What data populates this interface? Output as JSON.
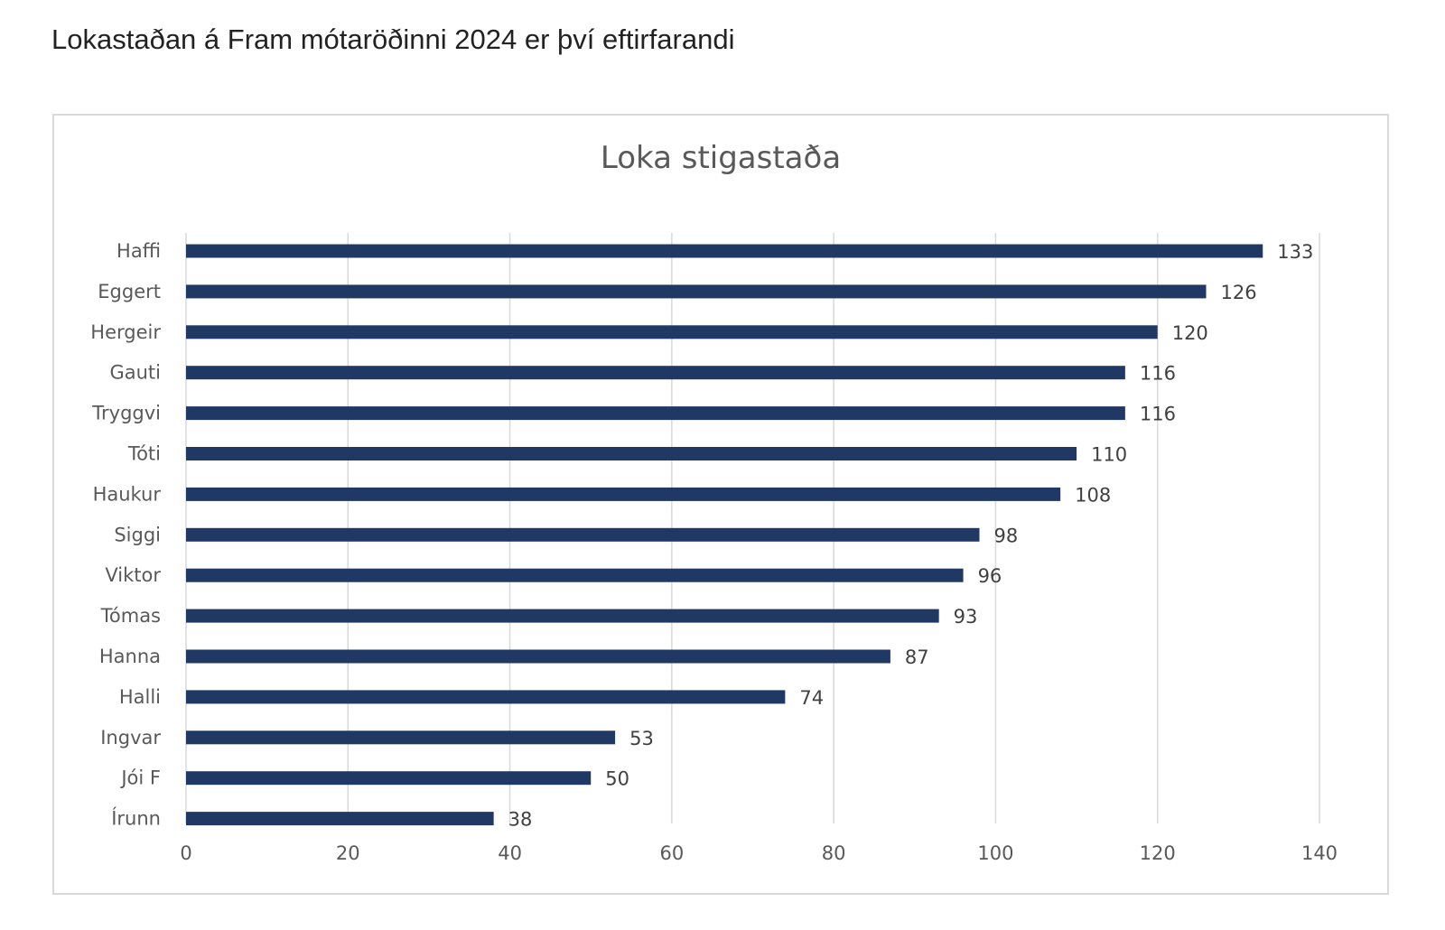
{
  "page": {
    "heading": "Lokastaðan á Fram mótaröðinni 2024 er því eftirfarandi"
  },
  "colors": {
    "bar": "#203864",
    "gridline": "#d9d9d9",
    "text": "#595959"
  },
  "chart_data": {
    "type": "bar",
    "orientation": "horizontal",
    "title": "Loka stigastaða",
    "categories": [
      "Haffi",
      "Eggert",
      "Hergeir",
      "Gauti",
      "Tryggvi",
      "Tóti",
      "Haukur",
      "Siggi",
      "Viktor",
      "Tómas",
      "Hanna",
      "Halli",
      "Ingvar",
      "Jói F",
      "Írunn"
    ],
    "values": [
      133,
      126,
      120,
      116,
      116,
      110,
      108,
      98,
      96,
      93,
      87,
      74,
      53,
      50,
      38
    ],
    "xlim": [
      0,
      140
    ],
    "xticks": [
      0,
      20,
      40,
      60,
      80,
      100,
      120,
      140
    ],
    "grid": true,
    "legend": "none",
    "data_labels": true
  }
}
